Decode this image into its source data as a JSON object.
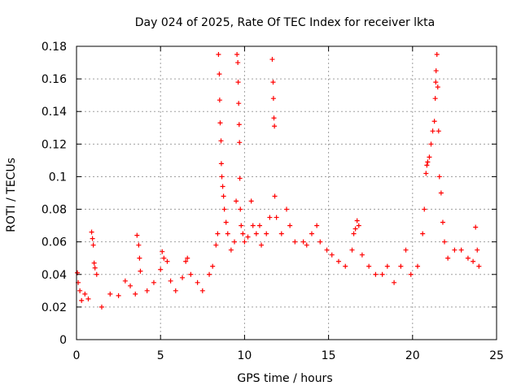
{
  "chart_data": {
    "type": "scatter",
    "title": "Day 024 of 2025, Rate Of TEC Index for receiver lkta",
    "xlabel": "GPS time / hours",
    "ylabel": "ROTI / TECUs",
    "xlim": [
      0,
      25
    ],
    "ylim": [
      0,
      0.18
    ],
    "x_ticks": [
      0,
      5,
      10,
      15,
      20,
      25
    ],
    "x_tick_labels": [
      "0",
      "5",
      "10",
      "15",
      "20",
      "25"
    ],
    "y_ticks": [
      0,
      0.02,
      0.04,
      0.06,
      0.08,
      0.1,
      0.12,
      0.14,
      0.16,
      0.18
    ],
    "y_tick_labels": [
      "0",
      "0.02",
      "0.04",
      "0.06",
      "0.08",
      "0.1",
      "0.12",
      "0.14",
      "0.16",
      "0.18"
    ],
    "grid": true,
    "marker": "+",
    "marker_color": "#ff0000",
    "series": [
      {
        "name": "ROTI",
        "points": [
          [
            0.05,
            0.041
          ],
          [
            0.1,
            0.035
          ],
          [
            0.2,
            0.03
          ],
          [
            0.3,
            0.024
          ],
          [
            0.5,
            0.028
          ],
          [
            0.7,
            0.025
          ],
          [
            0.9,
            0.066
          ],
          [
            0.95,
            0.062
          ],
          [
            1.0,
            0.058
          ],
          [
            1.05,
            0.047
          ],
          [
            1.1,
            0.044
          ],
          [
            1.2,
            0.04
          ],
          [
            1.5,
            0.02
          ],
          [
            2.0,
            0.028
          ],
          [
            2.5,
            0.027
          ],
          [
            2.9,
            0.036
          ],
          [
            3.2,
            0.033
          ],
          [
            3.5,
            0.028
          ],
          [
            3.6,
            0.064
          ],
          [
            3.7,
            0.058
          ],
          [
            3.75,
            0.05
          ],
          [
            3.8,
            0.042
          ],
          [
            4.2,
            0.03
          ],
          [
            4.6,
            0.035
          ],
          [
            5.0,
            0.043
          ],
          [
            5.1,
            0.054
          ],
          [
            5.2,
            0.05
          ],
          [
            5.4,
            0.048
          ],
          [
            5.6,
            0.036
          ],
          [
            5.9,
            0.03
          ],
          [
            6.3,
            0.038
          ],
          [
            6.5,
            0.048
          ],
          [
            6.6,
            0.05
          ],
          [
            6.8,
            0.04
          ],
          [
            7.2,
            0.035
          ],
          [
            7.5,
            0.03
          ],
          [
            7.9,
            0.04
          ],
          [
            8.1,
            0.045
          ],
          [
            8.3,
            0.058
          ],
          [
            8.4,
            0.065
          ],
          [
            8.45,
            0.175
          ],
          [
            8.5,
            0.163
          ],
          [
            8.52,
            0.147
          ],
          [
            8.55,
            0.133
          ],
          [
            8.6,
            0.122
          ],
          [
            8.62,
            0.108
          ],
          [
            8.65,
            0.1
          ],
          [
            8.7,
            0.094
          ],
          [
            8.75,
            0.088
          ],
          [
            8.8,
            0.08
          ],
          [
            8.9,
            0.072
          ],
          [
            9.0,
            0.065
          ],
          [
            9.2,
            0.055
          ],
          [
            9.4,
            0.06
          ],
          [
            9.5,
            0.085
          ],
          [
            9.55,
            0.175
          ],
          [
            9.6,
            0.17
          ],
          [
            9.62,
            0.158
          ],
          [
            9.65,
            0.145
          ],
          [
            9.68,
            0.132
          ],
          [
            9.7,
            0.121
          ],
          [
            9.72,
            0.099
          ],
          [
            9.75,
            0.08
          ],
          [
            9.8,
            0.07
          ],
          [
            9.9,
            0.065
          ],
          [
            10.0,
            0.06
          ],
          [
            10.2,
            0.063
          ],
          [
            10.4,
            0.085
          ],
          [
            10.5,
            0.07
          ],
          [
            10.7,
            0.065
          ],
          [
            10.9,
            0.07
          ],
          [
            11.0,
            0.058
          ],
          [
            11.3,
            0.065
          ],
          [
            11.5,
            0.075
          ],
          [
            11.65,
            0.172
          ],
          [
            11.7,
            0.158
          ],
          [
            11.72,
            0.148
          ],
          [
            11.75,
            0.136
          ],
          [
            11.78,
            0.131
          ],
          [
            11.8,
            0.088
          ],
          [
            11.9,
            0.075
          ],
          [
            12.2,
            0.065
          ],
          [
            12.5,
            0.08
          ],
          [
            12.7,
            0.07
          ],
          [
            13.0,
            0.06
          ],
          [
            13.5,
            0.06
          ],
          [
            13.7,
            0.058
          ],
          [
            14.0,
            0.065
          ],
          [
            14.3,
            0.07
          ],
          [
            14.5,
            0.06
          ],
          [
            14.9,
            0.055
          ],
          [
            15.2,
            0.052
          ],
          [
            15.6,
            0.048
          ],
          [
            16.0,
            0.045
          ],
          [
            16.4,
            0.055
          ],
          [
            16.5,
            0.065
          ],
          [
            16.6,
            0.068
          ],
          [
            16.7,
            0.073
          ],
          [
            16.8,
            0.07
          ],
          [
            17.0,
            0.052
          ],
          [
            17.4,
            0.045
          ],
          [
            17.8,
            0.04
          ],
          [
            18.2,
            0.04
          ],
          [
            18.5,
            0.045
          ],
          [
            18.9,
            0.035
          ],
          [
            19.3,
            0.045
          ],
          [
            19.6,
            0.055
          ],
          [
            19.9,
            0.04
          ],
          [
            20.3,
            0.045
          ],
          [
            20.6,
            0.065
          ],
          [
            20.7,
            0.08
          ],
          [
            20.8,
            0.102
          ],
          [
            20.85,
            0.107
          ],
          [
            20.9,
            0.109
          ],
          [
            21.0,
            0.112
          ],
          [
            21.1,
            0.12
          ],
          [
            21.2,
            0.128
          ],
          [
            21.3,
            0.134
          ],
          [
            21.35,
            0.148
          ],
          [
            21.38,
            0.158
          ],
          [
            21.4,
            0.165
          ],
          [
            21.45,
            0.175
          ],
          [
            21.5,
            0.155
          ],
          [
            21.55,
            0.128
          ],
          [
            21.6,
            0.1
          ],
          [
            21.7,
            0.09
          ],
          [
            21.8,
            0.072
          ],
          [
            21.9,
            0.06
          ],
          [
            22.1,
            0.05
          ],
          [
            22.5,
            0.055
          ],
          [
            22.9,
            0.055
          ],
          [
            23.3,
            0.05
          ],
          [
            23.6,
            0.048
          ],
          [
            23.75,
            0.069
          ],
          [
            23.85,
            0.055
          ],
          [
            23.95,
            0.045
          ]
        ]
      }
    ]
  }
}
